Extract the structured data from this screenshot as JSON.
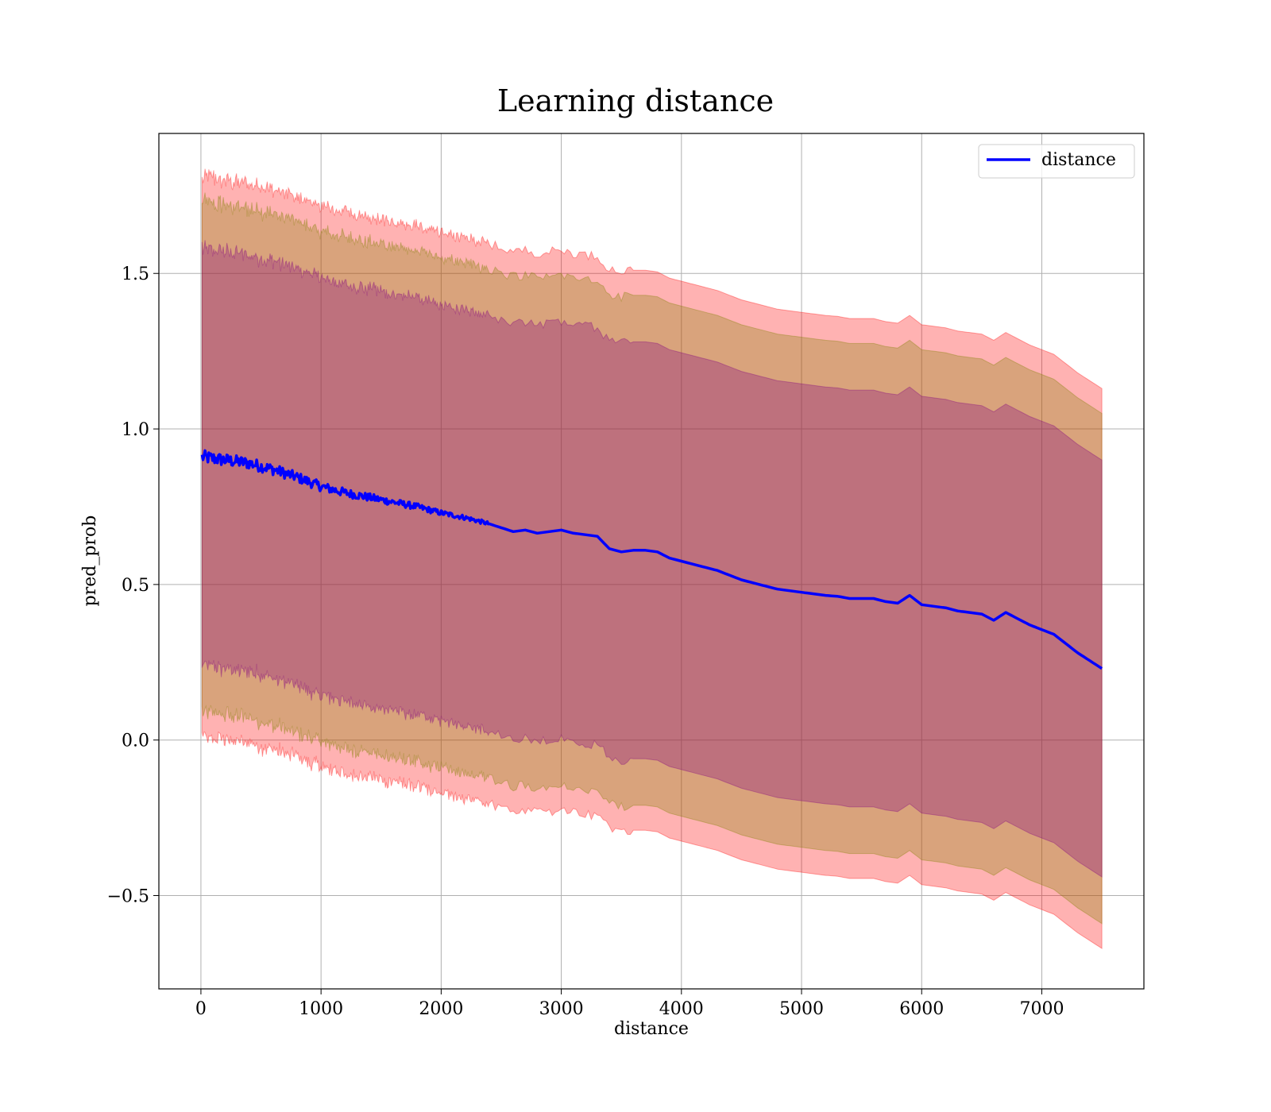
{
  "chart_data": {
    "type": "line",
    "title": "Learning distance",
    "xlabel": "distance",
    "ylabel": "pred_prob",
    "xlim": [
      -350,
      7850
    ],
    "ylim": [
      -0.8,
      1.95
    ],
    "grid": true,
    "legend_position": "top-right",
    "xticks": [
      {
        "value": 0,
        "label": "0"
      },
      {
        "value": 1000,
        "label": "1000"
      },
      {
        "value": 2000,
        "label": "2000"
      },
      {
        "value": 3000,
        "label": "3000"
      },
      {
        "value": 4000,
        "label": "4000"
      },
      {
        "value": 5000,
        "label": "5000"
      },
      {
        "value": 6000,
        "label": "6000"
      },
      {
        "value": 7000,
        "label": "7000"
      }
    ],
    "yticks": [
      {
        "value": -0.5,
        "label": "−0.5"
      },
      {
        "value": 0.0,
        "label": "0.0"
      },
      {
        "value": 0.5,
        "label": "0.5"
      },
      {
        "value": 1.0,
        "label": "1.0"
      },
      {
        "value": 1.5,
        "label": "1.5"
      }
    ],
    "series": [
      {
        "name": "distance",
        "color": "#0000ff",
        "x": [
          10,
          200,
          400,
          600,
          800,
          1000,
          1200,
          1400,
          1600,
          1800,
          2000,
          2200,
          2400,
          2600,
          2700,
          2800,
          2900,
          3000,
          3100,
          3200,
          3300,
          3400,
          3500,
          3600,
          3700,
          3800,
          3900,
          4000,
          4100,
          4200,
          4300,
          4400,
          4500,
          4600,
          4700,
          4800,
          4900,
          5000,
          5100,
          5200,
          5300,
          5400,
          5500,
          5600,
          5700,
          5800,
          5900,
          6000,
          6100,
          6200,
          6300,
          6400,
          6500,
          6600,
          6700,
          6800,
          6900,
          7000,
          7100,
          7200,
          7300,
          7400,
          7500
        ],
        "values": [
          0.91,
          0.9,
          0.89,
          0.87,
          0.845,
          0.815,
          0.795,
          0.78,
          0.765,
          0.75,
          0.73,
          0.715,
          0.695,
          0.67,
          0.675,
          0.665,
          0.67,
          0.675,
          0.665,
          0.66,
          0.655,
          0.615,
          0.605,
          0.61,
          0.61,
          0.605,
          0.585,
          0.575,
          0.565,
          0.555,
          0.545,
          0.53,
          0.515,
          0.505,
          0.495,
          0.485,
          0.48,
          0.475,
          0.47,
          0.465,
          0.462,
          0.455,
          0.455,
          0.455,
          0.445,
          0.44,
          0.465,
          0.435,
          0.43,
          0.425,
          0.415,
          0.41,
          0.405,
          0.385,
          0.41,
          0.39,
          0.37,
          0.355,
          0.34,
          0.31,
          0.28,
          0.255,
          0.23
        ],
        "noise_until": 2400,
        "noise_amplitude": 0.022
      }
    ],
    "bands": [
      {
        "name": "outer band",
        "color": "#ff0000",
        "opacity": 0.3,
        "upper_offset": 0.9,
        "lower_offset": -0.9,
        "upper_end_offset": 0.9,
        "lower_end_offset": -0.9
      },
      {
        "name": "middle band",
        "color": "#808000",
        "opacity": 0.3,
        "upper_offset": 0.82,
        "lower_offset": -0.82,
        "upper_end_offset": 0.82,
        "lower_end_offset": -0.82
      },
      {
        "name": "inner band",
        "color": "#800080",
        "opacity": 0.3,
        "upper_offset": 0.67,
        "lower_offset": -0.67,
        "upper_end_offset": 0.67,
        "lower_end_offset": -0.67
      }
    ],
    "legend": [
      {
        "label": "distance",
        "color": "#0000ff"
      }
    ]
  }
}
